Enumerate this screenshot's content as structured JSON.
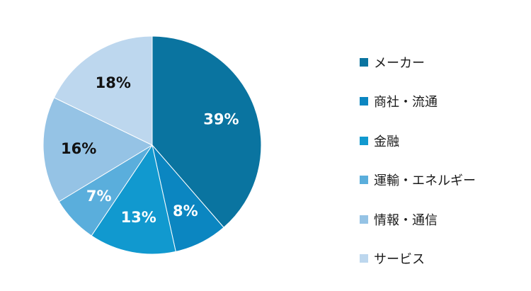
{
  "chart_data": {
    "type": "pie",
    "title": "",
    "categories": [
      "メーカー",
      "商社・流通",
      "金融",
      "運輸・エネルギー",
      "情報・通信",
      "サービス"
    ],
    "values": [
      39,
      8,
      13,
      7,
      16,
      18
    ],
    "labels": [
      "39%",
      "8%",
      "13%",
      "7%",
      "16%",
      "18%"
    ],
    "colors": [
      "#0a74a0",
      "#0b86c1",
      "#1199cf",
      "#5aaedc",
      "#95c3e5",
      "#bdd7ee"
    ],
    "label_colors": [
      "#ffffff",
      "#ffffff",
      "#ffffff",
      "#ffffff",
      "#111111",
      "#111111"
    ],
    "start_angle_deg": 0,
    "direction": "clockwise",
    "legend_position": "right"
  }
}
